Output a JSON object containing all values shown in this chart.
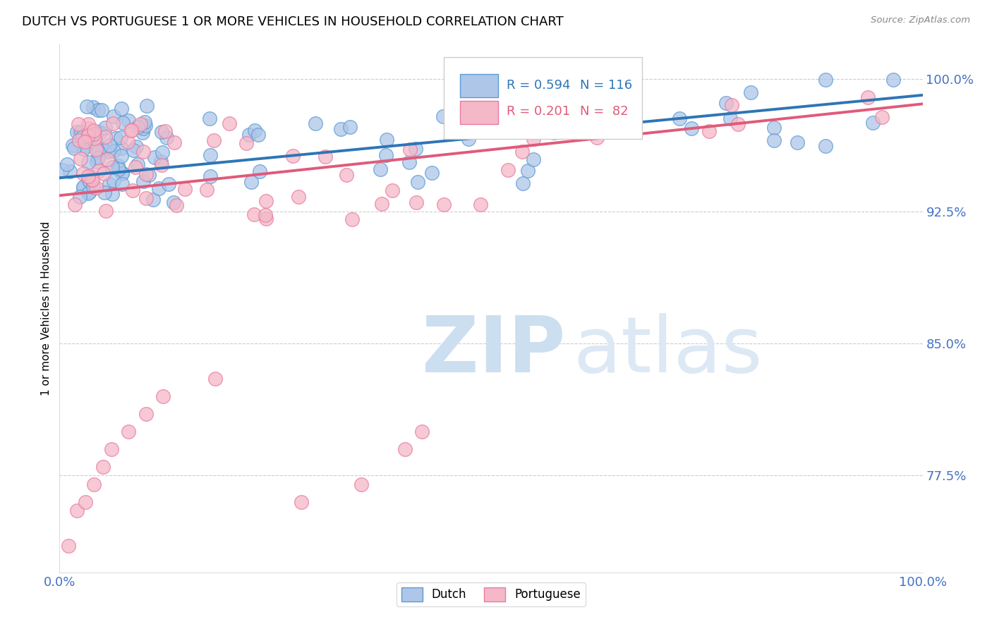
{
  "title": "DUTCH VS PORTUGUESE 1 OR MORE VEHICLES IN HOUSEHOLD CORRELATION CHART",
  "source": "Source: ZipAtlas.com",
  "ylabel": "1 or more Vehicles in Household",
  "dutch_R": 0.594,
  "dutch_N": 116,
  "portuguese_R": 0.201,
  "portuguese_N": 82,
  "dutch_color": "#aec6e8",
  "dutch_edge_color": "#5b9bd5",
  "dutch_line_color": "#2e75b6",
  "portuguese_color": "#f4b8c8",
  "portuguese_edge_color": "#e87ca0",
  "portuguese_line_color": "#e05a7a",
  "watermark_zip_color": "#c8dff0",
  "watermark_atlas_color": "#c8dff0",
  "xlim": [
    0.0,
    1.0
  ],
  "ylim": [
    0.72,
    1.02
  ],
  "yticks": [
    0.775,
    0.85,
    0.925,
    1.0
  ],
  "ytick_labels": [
    "77.5%",
    "85.0%",
    "92.5%",
    "100.0%"
  ],
  "tick_color": "#4472c4",
  "title_fontsize": 13,
  "axis_label_fontsize": 11,
  "tick_fontsize": 13,
  "dutch_line_intercept": 0.944,
  "dutch_line_slope": 0.047,
  "portuguese_line_intercept": 0.934,
  "portuguese_line_slope": 0.052
}
